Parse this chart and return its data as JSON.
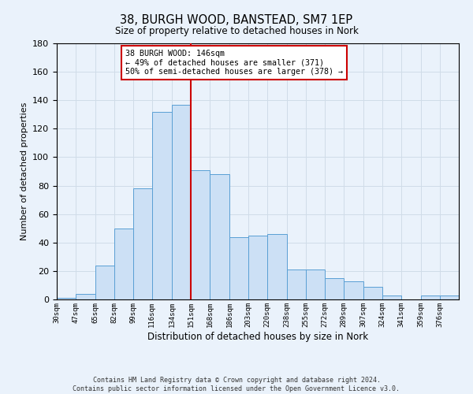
{
  "title": "38, BURGH WOOD, BANSTEAD, SM7 1EP",
  "subtitle": "Size of property relative to detached houses in Nork",
  "xlabel": "Distribution of detached houses by size in Nork",
  "ylabel": "Number of detached properties",
  "footer_line1": "Contains HM Land Registry data © Crown copyright and database right 2024.",
  "footer_line2": "Contains public sector information licensed under the Open Government Licence v3.0.",
  "annotation_title": "38 BURGH WOOD: 146sqm",
  "annotation_line1": "← 49% of detached houses are smaller (371)",
  "annotation_line2": "50% of semi-detached houses are larger (378) →",
  "property_size": 146,
  "bar_categories": [
    "30sqm",
    "47sqm",
    "65sqm",
    "82sqm",
    "99sqm",
    "116sqm",
    "134sqm",
    "151sqm",
    "168sqm",
    "186sqm",
    "203sqm",
    "220sqm",
    "238sqm",
    "255sqm",
    "272sqm",
    "289sqm",
    "307sqm",
    "324sqm",
    "341sqm",
    "359sqm",
    "376sqm"
  ],
  "bar_values": [
    1,
    4,
    24,
    50,
    78,
    132,
    137,
    91,
    88,
    44,
    45,
    46,
    21,
    21,
    15,
    13,
    9,
    3,
    0,
    3,
    3
  ],
  "bar_left_edges": [
    30,
    47,
    65,
    82,
    99,
    116,
    134,
    151,
    168,
    186,
    203,
    220,
    238,
    255,
    272,
    289,
    307,
    324,
    341,
    359,
    376
  ],
  "bar_widths": [
    17,
    18,
    17,
    17,
    17,
    18,
    17,
    17,
    18,
    17,
    17,
    18,
    17,
    17,
    17,
    18,
    17,
    17,
    18,
    17,
    17
  ],
  "bar_fill_color": "#cce0f5",
  "bar_edge_color": "#5a9fd4",
  "vline_color": "#cc0000",
  "vline_x": 151,
  "annotation_box_color": "#ffffff",
  "annotation_box_edge": "#cc0000",
  "grid_color": "#d0dce8",
  "background_color": "#eaf2fb",
  "ylim": [
    0,
    180
  ],
  "yticks": [
    0,
    20,
    40,
    60,
    80,
    100,
    120,
    140,
    160,
    180
  ]
}
